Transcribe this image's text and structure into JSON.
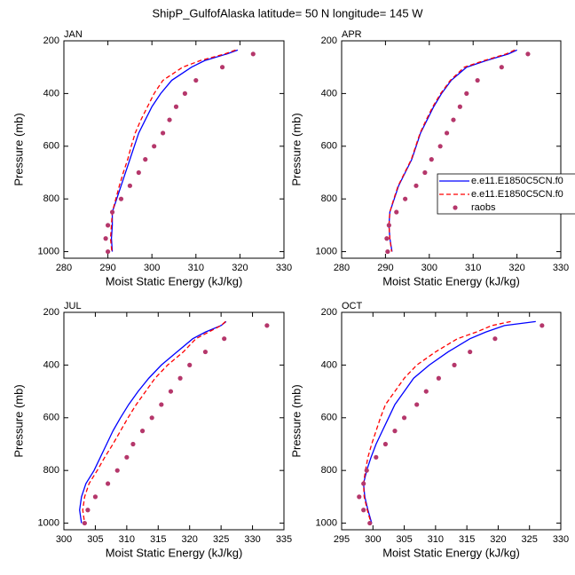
{
  "title": "ShipP_GulfofAlaska  latitude= 50 N longitude= 145 W",
  "chart_data": [
    {
      "type": "line",
      "title": "JAN",
      "x_label": "Moist Static Energy (kJ/kg)",
      "y_label": "Pressure (mb)",
      "xlim": [
        280,
        330
      ],
      "xticks": [
        280,
        290,
        300,
        310,
        320,
        330
      ],
      "ylim": [
        1025,
        200
      ],
      "yticks": [
        200,
        400,
        600,
        800,
        1000
      ],
      "series": [
        {
          "color": "#0000ff",
          "line": "solid",
          "x": [
            319.5,
            317,
            312,
            309,
            304.5,
            302,
            300,
            298.5,
            297,
            296,
            295,
            294,
            293,
            292,
            291,
            291,
            290.8,
            291
          ],
          "values": [
            235,
            250,
            275,
            300,
            350,
            400,
            450,
            500,
            550,
            600,
            650,
            700,
            750,
            800,
            850,
            900,
            950,
            1000
          ]
        },
        {
          "color": "#ff0000",
          "line": "dashed",
          "x": [
            319,
            316.5,
            311,
            307,
            302.5,
            300.5,
            299,
            297.5,
            296.2,
            295.3,
            294.5,
            293.5,
            292.6,
            291.8,
            291,
            290.8,
            290.6,
            290.9
          ],
          "values": [
            235,
            250,
            275,
            300,
            350,
            400,
            450,
            500,
            550,
            600,
            650,
            700,
            750,
            800,
            850,
            900,
            950,
            1000
          ]
        },
        {
          "color": "#b5376b",
          "line": "none",
          "x": [
            323,
            316,
            310,
            307.5,
            305.5,
            304,
            302.5,
            300.5,
            298.5,
            297,
            295,
            293,
            291,
            290,
            289.5,
            290
          ],
          "values": [
            250,
            300,
            350,
            400,
            450,
            500,
            550,
            600,
            650,
            700,
            750,
            800,
            850,
            900,
            950,
            1000
          ]
        }
      ]
    },
    {
      "type": "line",
      "title": "APR",
      "x_label": "Moist Static Energy (kJ/kg)",
      "y_label": "Pressure (mb)",
      "xlim": [
        280,
        330
      ],
      "xticks": [
        280,
        290,
        300,
        310,
        320,
        330
      ],
      "ylim": [
        1025,
        200
      ],
      "yticks": [
        200,
        400,
        600,
        800,
        1000
      ],
      "legend": "right",
      "series": [
        {
          "name": "e.e11.E1850C5CN.f0",
          "color": "#0000ff",
          "line": "solid",
          "x": [
            320,
            318,
            313,
            308.5,
            305,
            302.8,
            301,
            299.5,
            298,
            297,
            296,
            294.5,
            293,
            292,
            291,
            290.8,
            291,
            291.5
          ],
          "values": [
            235,
            250,
            275,
            300,
            350,
            400,
            450,
            500,
            550,
            600,
            650,
            700,
            750,
            800,
            850,
            900,
            950,
            1000
          ]
        },
        {
          "name": "e.e11.E1850C5CN.f0",
          "color": "#ff0000",
          "line": "dashed",
          "x": [
            319.5,
            317.5,
            312.5,
            308,
            304.8,
            302.6,
            300.8,
            299.3,
            297.9,
            296.9,
            295.9,
            294.4,
            292.9,
            291.9,
            291,
            290.8,
            291,
            291.4
          ],
          "values": [
            235,
            250,
            275,
            300,
            350,
            400,
            450,
            500,
            550,
            600,
            650,
            700,
            750,
            800,
            850,
            900,
            950,
            1000
          ]
        },
        {
          "name": "raobs",
          "color": "#b5376b",
          "line": "none",
          "x": [
            322.5,
            316.5,
            311,
            308.5,
            307,
            305.5,
            304,
            302.5,
            300.5,
            299,
            297,
            294.5,
            292.5,
            290.8,
            290.3,
            290.5
          ],
          "values": [
            250,
            300,
            350,
            400,
            450,
            500,
            550,
            600,
            650,
            700,
            750,
            800,
            850,
            900,
            950,
            1000
          ]
        }
      ]
    },
    {
      "type": "line",
      "title": "JUL",
      "x_label": "Moist Static Energy (kJ/kg)",
      "y_label": "Pressure (mb)",
      "xlim": [
        300,
        335
      ],
      "xticks": [
        300,
        305,
        310,
        315,
        320,
        325,
        330,
        335
      ],
      "ylim": [
        1025,
        200
      ],
      "yticks": [
        200,
        400,
        600,
        800,
        1000
      ],
      "series": [
        {
          "color": "#0000ff",
          "line": "solid",
          "x": [
            325.8,
            325,
            322.5,
            320.5,
            318,
            315.5,
            313.5,
            311.8,
            310.3,
            309,
            307.8,
            306.8,
            305.8,
            304.8,
            303.5,
            302.8,
            302.5,
            302.8
          ],
          "values": [
            235,
            250,
            275,
            300,
            350,
            400,
            450,
            500,
            550,
            600,
            650,
            700,
            750,
            800,
            850,
            900,
            950,
            1000
          ]
        },
        {
          "color": "#ff0000",
          "line": "dashed",
          "x": [
            325.7,
            325,
            323,
            321,
            319,
            316.5,
            314.5,
            313,
            311.5,
            310.2,
            309,
            307.8,
            306.5,
            305.3,
            304,
            303.3,
            303,
            303.3
          ],
          "values": [
            235,
            250,
            275,
            300,
            350,
            400,
            450,
            500,
            550,
            600,
            650,
            700,
            750,
            800,
            850,
            900,
            950,
            1000
          ]
        },
        {
          "color": "#b5376b",
          "line": "none",
          "x": [
            332.3,
            325.5,
            322.5,
            320,
            318.5,
            317,
            315.5,
            314,
            312.5,
            311,
            310,
            308.5,
            307,
            305,
            303.8,
            303.3
          ],
          "values": [
            250,
            300,
            350,
            400,
            450,
            500,
            550,
            600,
            650,
            700,
            750,
            800,
            850,
            900,
            950,
            1000
          ]
        }
      ]
    },
    {
      "type": "line",
      "title": "OCT",
      "x_label": "Moist Static Energy (kJ/kg)",
      "y_label": "Pressure (mb)",
      "xlim": [
        295,
        330
      ],
      "xticks": [
        295,
        300,
        305,
        310,
        315,
        320,
        325,
        330
      ],
      "ylim": [
        1025,
        200
      ],
      "yticks": [
        200,
        400,
        600,
        800,
        1000
      ],
      "series": [
        {
          "color": "#0000ff",
          "line": "solid",
          "x": [
            326,
            321,
            318,
            315.5,
            312,
            309,
            306.5,
            305,
            303.5,
            302.5,
            301.5,
            300.5,
            299.7,
            299,
            298.5,
            298.7,
            299.2,
            299.8
          ],
          "values": [
            235,
            250,
            275,
            300,
            350,
            400,
            450,
            500,
            550,
            600,
            650,
            700,
            750,
            800,
            850,
            900,
            950,
            1000
          ]
        },
        {
          "color": "#ff0000",
          "line": "dashed",
          "x": [
            322,
            319,
            316.5,
            313.5,
            310,
            307,
            305,
            303.5,
            302,
            301.2,
            300.5,
            299.8,
            299.2,
            298.8,
            298.5,
            298.6,
            299.1,
            299.7
          ],
          "values": [
            235,
            250,
            275,
            300,
            350,
            400,
            450,
            500,
            550,
            600,
            650,
            700,
            750,
            800,
            850,
            900,
            950,
            1000
          ]
        },
        {
          "color": "#b5376b",
          "line": "none",
          "x": [
            327,
            319.5,
            315.5,
            313,
            310.5,
            308.5,
            307,
            305,
            303.5,
            302,
            300.5,
            299,
            298.5,
            297.8,
            298.5,
            299.5
          ],
          "values": [
            250,
            300,
            350,
            400,
            450,
            500,
            550,
            600,
            650,
            700,
            750,
            800,
            850,
            900,
            950,
            1000
          ]
        }
      ]
    }
  ]
}
